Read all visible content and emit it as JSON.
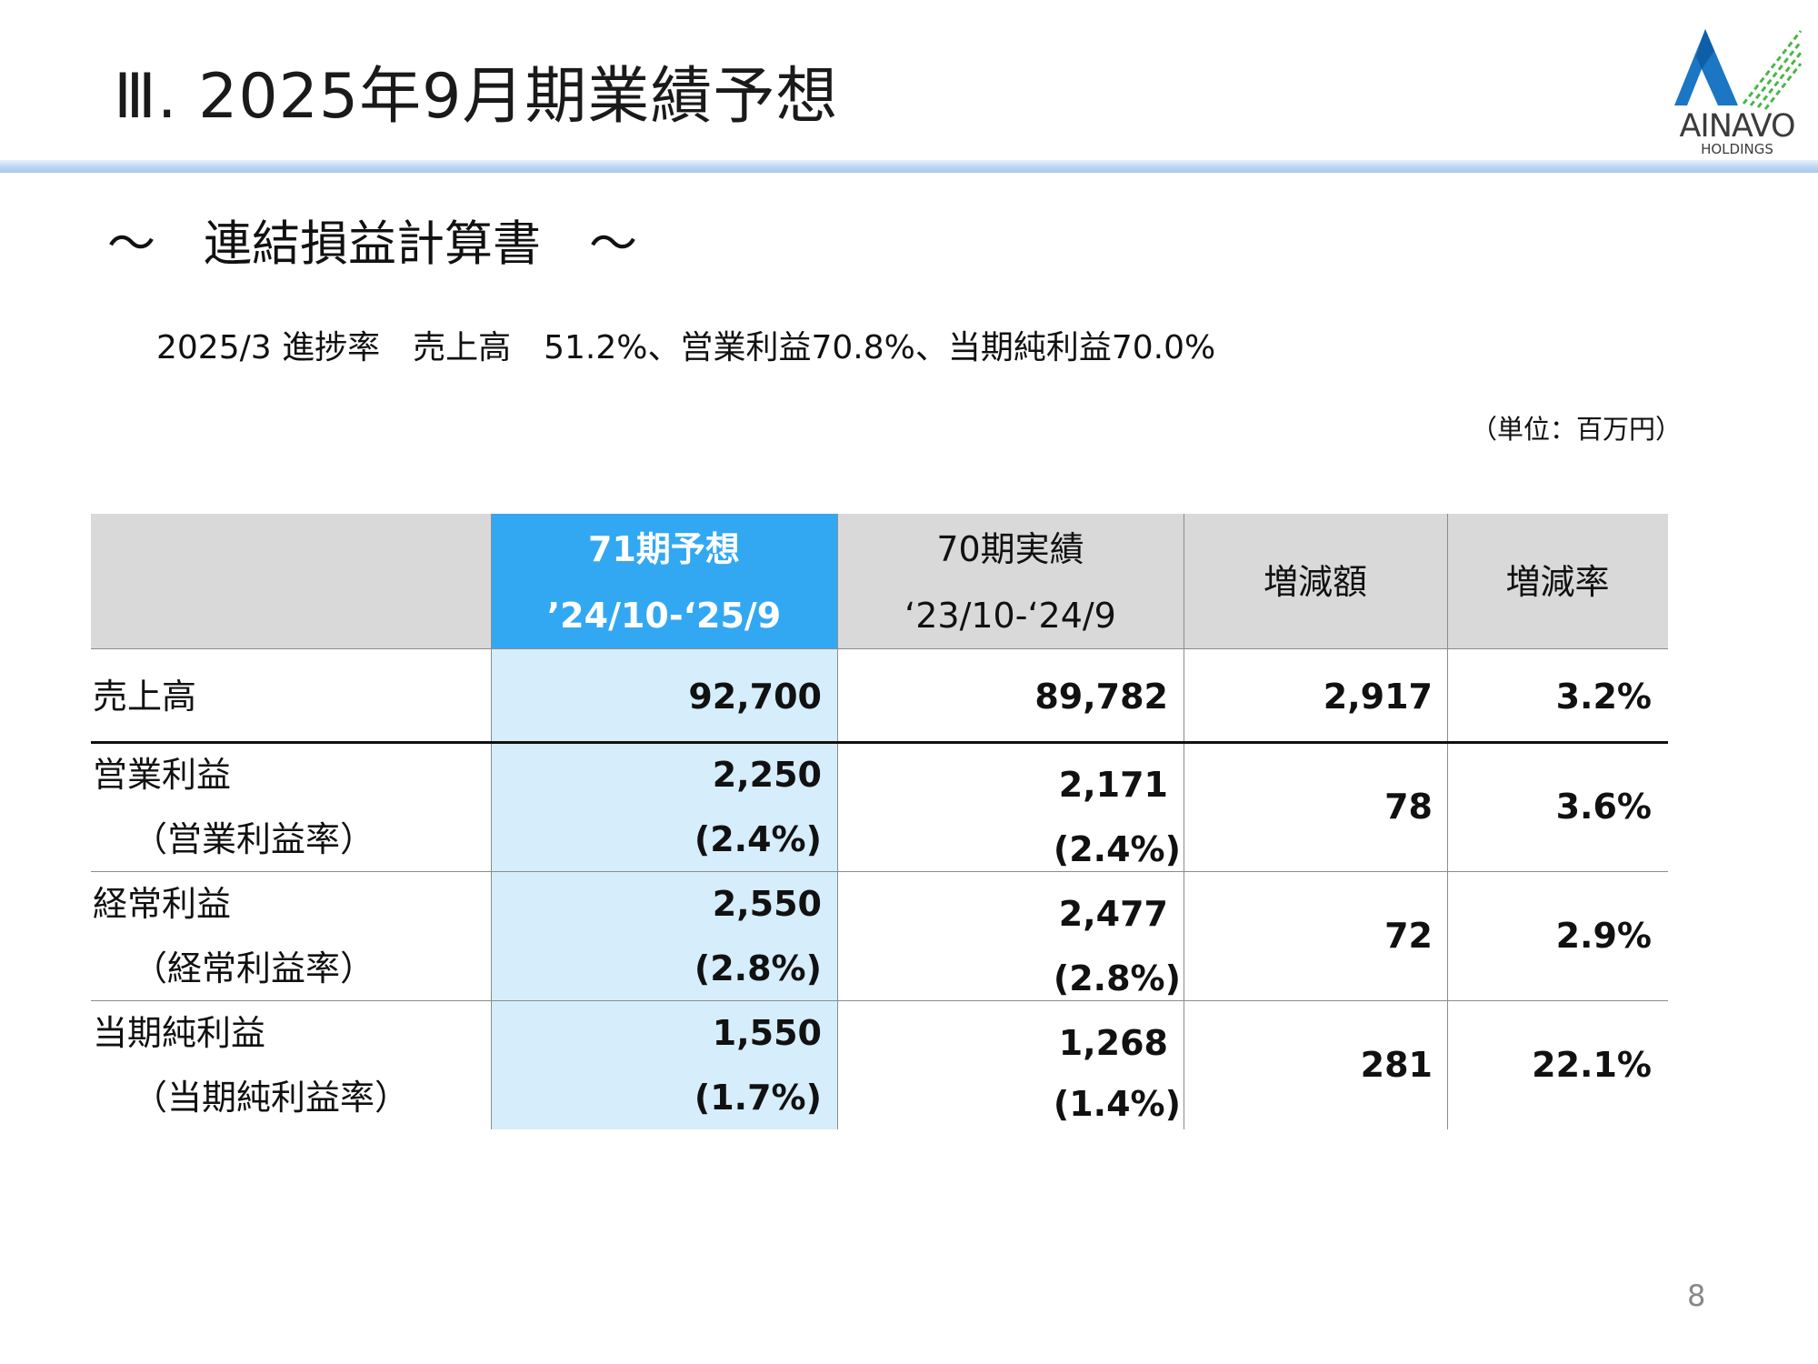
{
  "header": {
    "title": "Ⅲ. 2025年9月期業績予想",
    "logo": {
      "brand": "AINAVO",
      "sub": "HOLDINGS",
      "colors": {
        "blue": "#1b76c4",
        "green": "#4bb54a"
      }
    }
  },
  "subtitle": "～　連結損益計算書　～",
  "progress_text": "2025/3 進捗率　売上高　51.2%、営業利益70.8%、当期純利益70.0%",
  "unit": "（単位：百万円）",
  "table": {
    "headers": {
      "forecast_line1": "71期予想",
      "forecast_line2": "’24/10-‘25/9",
      "actual_line1": "70期実績",
      "actual_line2": "‘23/10-‘24/9",
      "change": "増減額",
      "rate": "増減率"
    },
    "rows": [
      {
        "label": "売上高",
        "forecast": "92,700",
        "actual": "89,782",
        "change": "2,917",
        "rate": "3.2%"
      },
      {
        "label": "営業利益",
        "sublabel": "（営業利益率）",
        "forecast": "2,250",
        "forecast_ratio": "(2.4%)",
        "actual": "2,171",
        "actual_ratio": "(2.4%)",
        "change": "78",
        "rate": "3.6%"
      },
      {
        "label": "経常利益",
        "sublabel": "（経常利益率）",
        "forecast": "2,550",
        "forecast_ratio": "(2.8%)",
        "actual": "2,477",
        "actual_ratio": "(2.8%)",
        "change": "72",
        "rate": "2.9%"
      },
      {
        "label": "当期純利益",
        "sublabel": "（当期純利益率）",
        "forecast": "1,550",
        "forecast_ratio": "(1.7%)",
        "actual": "1,268",
        "actual_ratio": "(1.4%)",
        "change": "281",
        "rate": "22.1%"
      }
    ]
  },
  "page_number": "8",
  "colors": {
    "header_accent": "#33a8f2",
    "forecast_fill": "#d6edfb",
    "header_gray": "#d9d9d9"
  }
}
